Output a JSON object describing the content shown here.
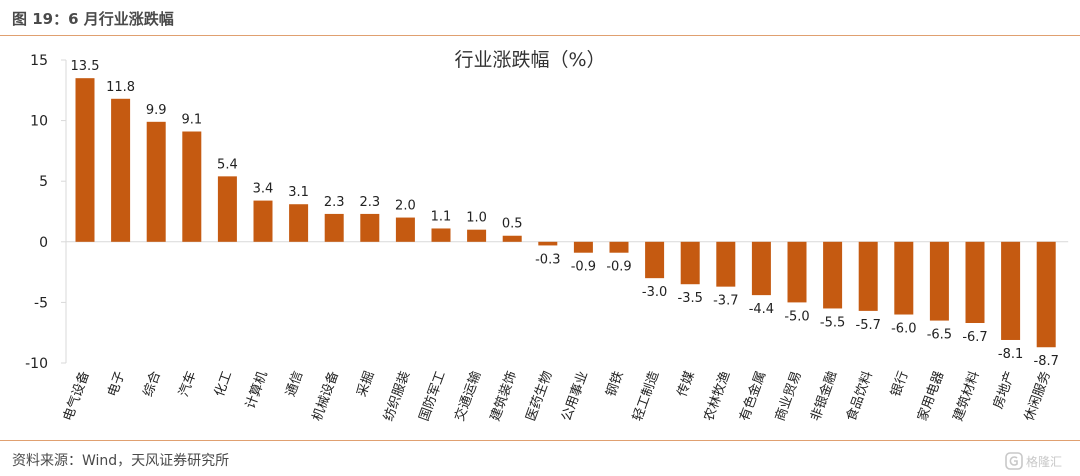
{
  "figure_title": "图 19：6 月行业涨跌幅",
  "source_text": "资料来源：Wind，天风证券研究所",
  "watermark": {
    "text": "格隆汇",
    "icon": "logo-icon"
  },
  "colors": {
    "bar": "#C55A11",
    "axis": "#d9d9d9",
    "accent_line": "#e0a070"
  },
  "chart_data": {
    "type": "bar",
    "title": "行业涨跌幅（%）",
    "xlabel": "",
    "ylabel": "",
    "ylim": [
      -10,
      15
    ],
    "yticks": [
      15,
      10,
      5,
      0,
      -5,
      -10
    ],
    "grid": false,
    "categories": [
      "电气设备",
      "电子",
      "综合",
      "汽车",
      "化工",
      "计算机",
      "通信",
      "机械设备",
      "采掘",
      "纺织服装",
      "国防军工",
      "交通运输",
      "建筑装饰",
      "医药生物",
      "公用事业",
      "钢铁",
      "轻工制造",
      "传媒",
      "农林牧渔",
      "有色金属",
      "商业贸易",
      "非银金融",
      "食品饮料",
      "银行",
      "家用电器",
      "建筑材料",
      "房地产",
      "休闲服务"
    ],
    "values": [
      13.5,
      11.8,
      9.9,
      9.1,
      5.4,
      3.4,
      3.1,
      2.3,
      2.3,
      2.0,
      1.1,
      1.0,
      0.5,
      -0.3,
      -0.9,
      -0.9,
      -3.0,
      -3.5,
      -3.7,
      -4.4,
      -5.0,
      -5.5,
      -5.7,
      -6.0,
      -6.5,
      -6.7,
      -8.1,
      -8.7
    ],
    "value_labels": [
      "13.5",
      "11.8",
      "9.9",
      "9.1",
      "5.4",
      "3.4",
      "3.1",
      "2.3",
      "2.3",
      "2.0",
      "1.1",
      "1.0",
      "0.5",
      "-0.3",
      "-0.9",
      "-0.9",
      "-3.0",
      "-3.5",
      "-3.7",
      "-4.4",
      "-5.0",
      "-5.5",
      "-5.7",
      "-6.0",
      "-6.5",
      "-6.7",
      "-8.1",
      "-8.7"
    ]
  }
}
